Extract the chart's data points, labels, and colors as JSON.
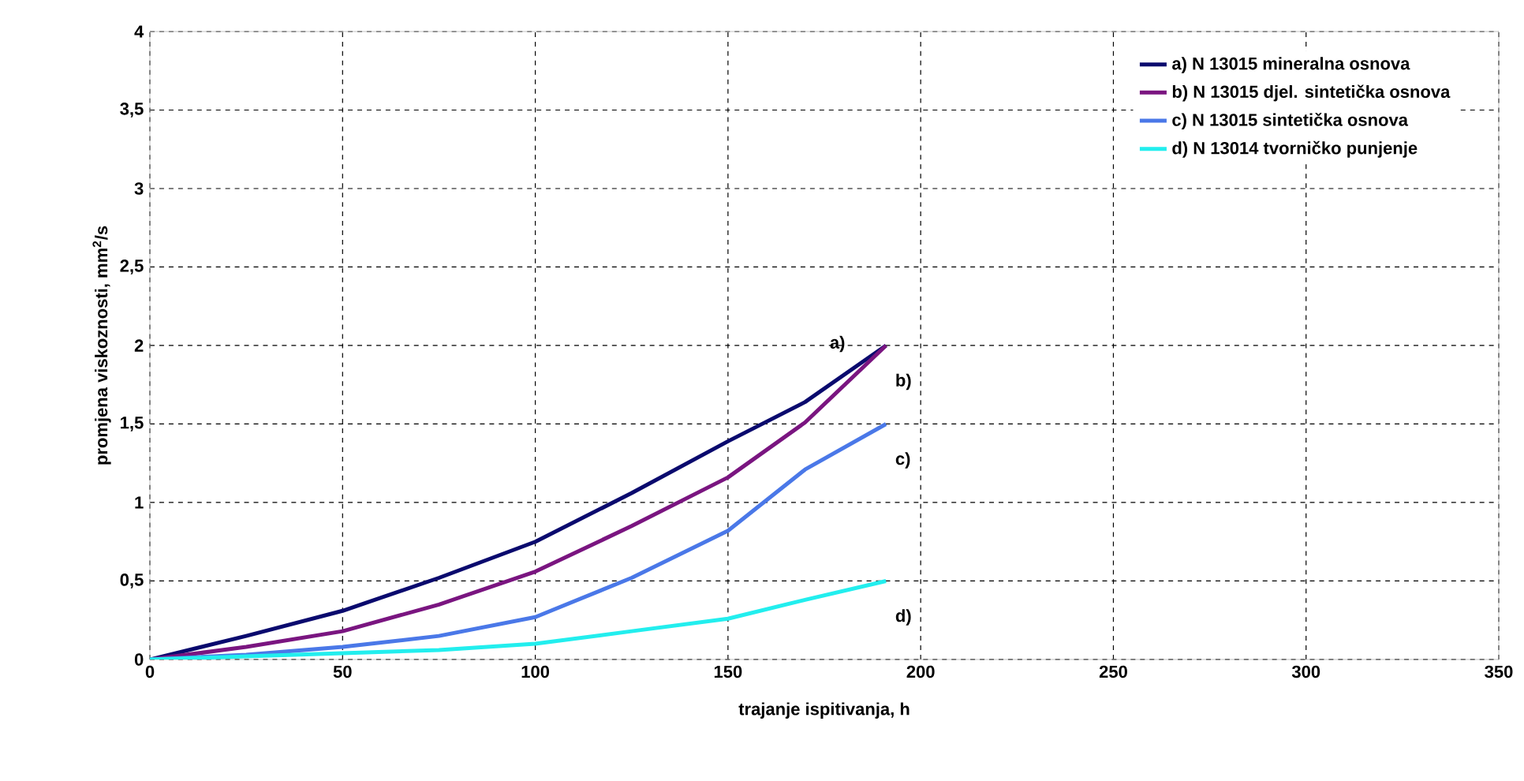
{
  "chart_data": {
    "type": "line",
    "xlabel": "trajanje ispitivanja, h",
    "ylabel": "promjena viskoznosti, mm$^{2}$/s",
    "xlim": [
      0,
      350
    ],
    "ylim": [
      0,
      4
    ],
    "xticks": [
      0,
      50,
      100,
      150,
      200,
      250,
      300,
      350
    ],
    "yticks": [
      {
        "value": 0,
        "label": "0"
      },
      {
        "value": 0.5,
        "label": "0,5"
      },
      {
        "value": 1,
        "label": "1"
      },
      {
        "value": 1.5,
        "label": "1,5"
      },
      {
        "value": 2,
        "label": "2"
      },
      {
        "value": 2.5,
        "label": "2,5"
      },
      {
        "value": 3,
        "label": "3"
      },
      {
        "value": 3.5,
        "label": "3,5"
      },
      {
        "value": 4,
        "label": "4"
      }
    ],
    "grid": true,
    "legend": "top right",
    "line_style": "solid",
    "marker": "none",
    "x": [
      0,
      25,
      50,
      75,
      100,
      125,
      150,
      170,
      191
    ],
    "series": [
      {
        "name": "a) N 13015 mineralna osnova",
        "color": "#0a0a6e",
        "values": [
          0,
          0.15,
          0.31,
          0.52,
          0.75,
          1.06,
          1.39,
          1.64,
          2
        ]
      },
      {
        "name": "b) N 13015 djel. sintetička osnova",
        "color": "#7a1580",
        "values": [
          0,
          0.08,
          0.18,
          0.35,
          0.56,
          0.85,
          1.16,
          1.51,
          2
        ]
      },
      {
        "name": "c) N 13015 sintetička osnova",
        "color": "#4a78e8",
        "values": [
          0,
          0.03,
          0.08,
          0.15,
          0.27,
          0.52,
          0.82,
          1.21,
          1.5
        ]
      },
      {
        "name": "d) N 13014 tvorničko punjenje",
        "color": "#22eeee",
        "values": [
          0,
          0.02,
          0.04,
          0.06,
          0.1,
          0.18,
          0.26,
          0.38,
          0.5
        ]
      }
    ],
    "annotations": [
      "a)",
      "b)",
      "c)",
      "d)"
    ]
  }
}
